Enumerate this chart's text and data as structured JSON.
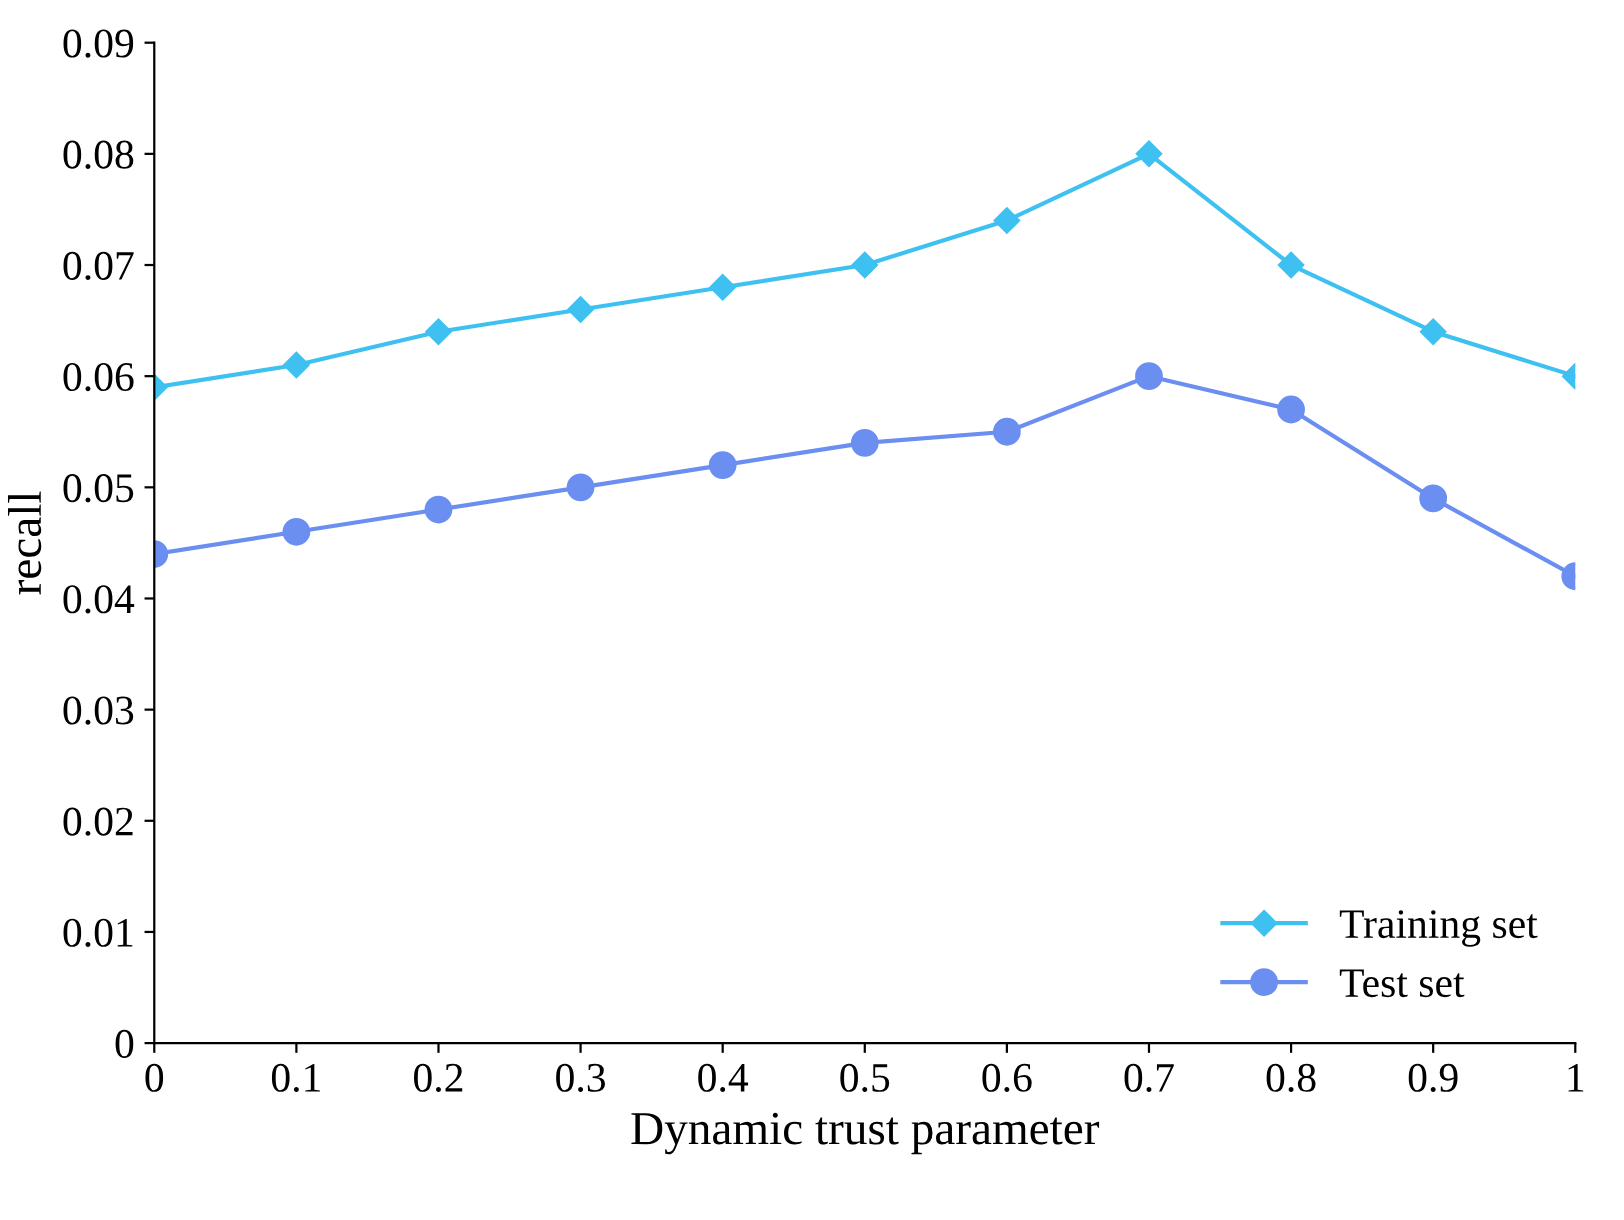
{
  "chart_data": {
    "type": "line",
    "xlabel": "Dynamic trust parameter",
    "ylabel": "recall",
    "x": [
      0,
      0.1,
      0.2,
      0.3,
      0.4,
      0.5,
      0.6,
      0.7,
      0.8,
      0.9,
      1
    ],
    "series": [
      {
        "name": "Training set",
        "color": "#3ec1f0",
        "marker": "diamond",
        "values": [
          0.059,
          0.061,
          0.064,
          0.066,
          0.068,
          0.07,
          0.074,
          0.08,
          0.07,
          0.064,
          0.06
        ]
      },
      {
        "name": "Test set",
        "color": "#6b8ff0",
        "marker": "circle",
        "values": [
          0.044,
          0.046,
          0.048,
          0.05,
          0.052,
          0.054,
          0.055,
          0.06,
          0.057,
          0.049,
          0.042
        ]
      }
    ],
    "xlim": [
      0,
      1
    ],
    "xticks": [
      0,
      0.1,
      0.2,
      0.3,
      0.4,
      0.5,
      0.6,
      0.7,
      0.8,
      0.9,
      1
    ],
    "ylim": [
      0,
      0.09
    ],
    "yticks": [
      0,
      0.01,
      0.02,
      0.03,
      0.04,
      0.05,
      0.06,
      0.07,
      0.08,
      0.09
    ],
    "grid": false,
    "legend": "bottom right",
    "line_style": "solid"
  }
}
